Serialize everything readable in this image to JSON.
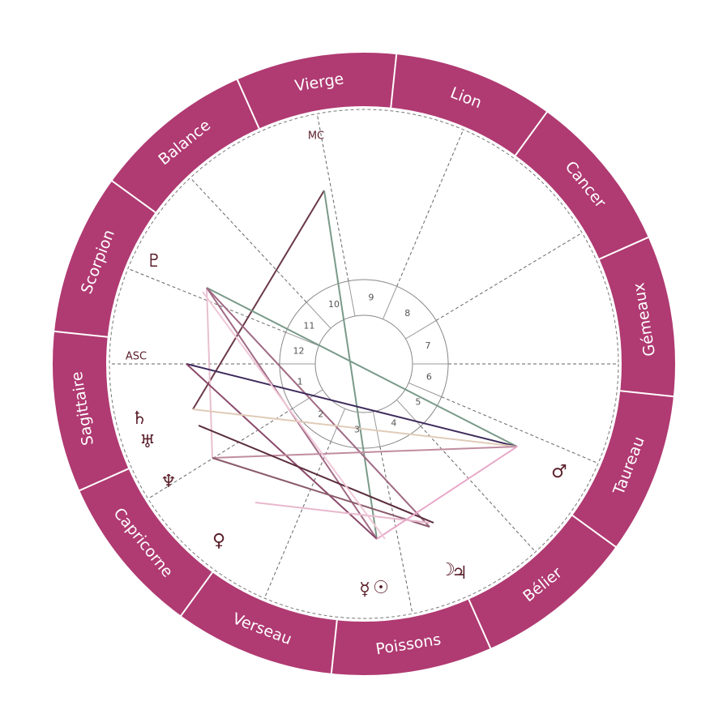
{
  "signs": [
    "Vierge",
    "Lion",
    "Cancer",
    "Gémeaux",
    "Taureau",
    "Bélier",
    "Poissons",
    "Verseau",
    "Capricorne",
    "Sagittaire",
    "Scorpion",
    "Balance"
  ],
  "houses": [
    "1",
    "2",
    "3",
    "4",
    "5",
    "6",
    "7",
    "8",
    "9",
    "10",
    "11",
    "12"
  ],
  "angles": {
    "asc": "ASC",
    "mc": "MC"
  },
  "planets": [
    "♇",
    "♄",
    "♅",
    "♆",
    "♀",
    "☿",
    "☉",
    "☽",
    "♃",
    "♂"
  ]
}
